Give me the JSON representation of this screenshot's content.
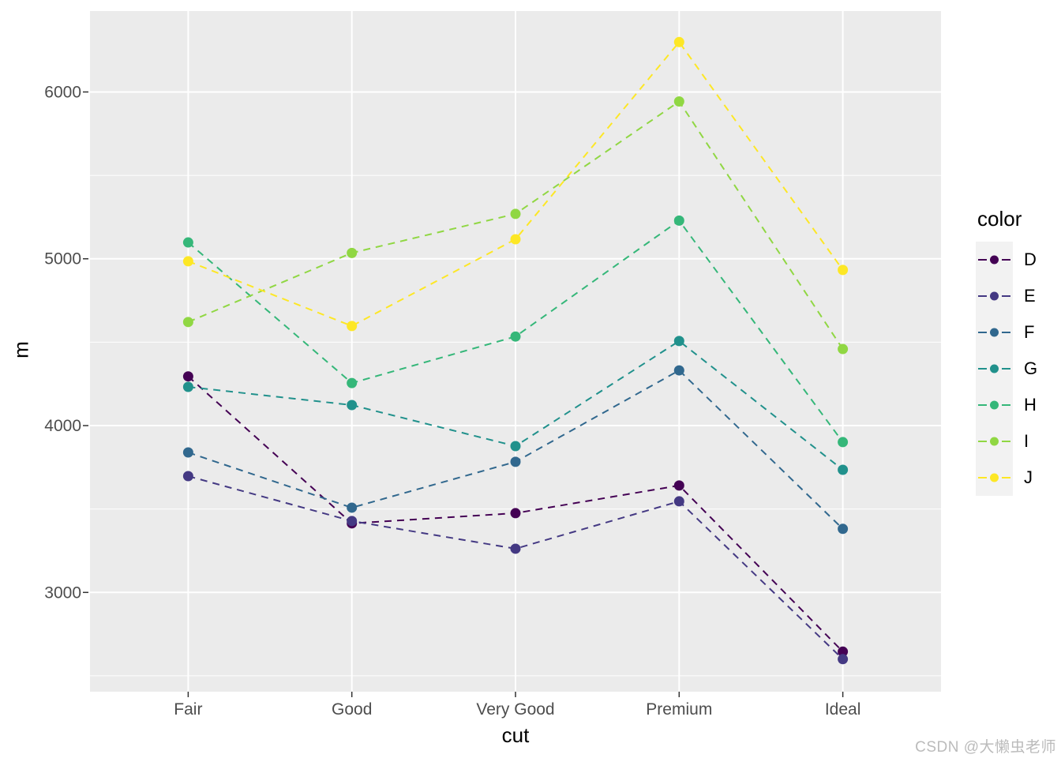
{
  "theme": {
    "background": "#FFFFFF",
    "panel_background": "#EBEBEB",
    "grid_color": "#FFFFFF",
    "tick_color": "#333333",
    "tick_label_color": "#4D4D4D",
    "axis_title_color": "#000000",
    "legend_key_fill": "#F2F2F2",
    "watermark_color": "#BBBBBB"
  },
  "watermark": "CSDN @大懒虫老师",
  "chart_data": {
    "type": "line",
    "title": "",
    "xlabel": "cut",
    "ylabel": "m",
    "legend_title": "color",
    "legend_position": "right",
    "line_style": "dashed",
    "marker": "circle",
    "grid": true,
    "categories": [
      "Fair",
      "Good",
      "Very Good",
      "Premium",
      "Ideal"
    ],
    "y_ticks": [
      3000,
      4000,
      5000,
      6000
    ],
    "y_minor_ticks": [
      2500,
      3500,
      4500,
      5500
    ],
    "ylim": [
      2405,
      6485
    ],
    "series": [
      {
        "name": "D",
        "color": "#440154",
        "values": [
          4295,
          3414,
          3475,
          3641,
          2645
        ]
      },
      {
        "name": "E",
        "color": "#443983",
        "values": [
          3697,
          3428,
          3262,
          3546,
          2600
        ]
      },
      {
        "name": "F",
        "color": "#31688E",
        "values": [
          3839,
          3508,
          3783,
          4331,
          3381
        ]
      },
      {
        "name": "G",
        "color": "#21918C",
        "values": [
          4232,
          4123,
          3877,
          4507,
          3735
        ]
      },
      {
        "name": "H",
        "color": "#35B779",
        "values": [
          5098,
          4255,
          4534,
          5229,
          3901
        ]
      },
      {
        "name": "I",
        "color": "#90D743",
        "values": [
          4621,
          5035,
          5269,
          5943,
          4459
        ]
      },
      {
        "name": "J",
        "color": "#FDE725",
        "values": [
          4985,
          4597,
          5117,
          6299,
          4933
        ]
      }
    ]
  }
}
